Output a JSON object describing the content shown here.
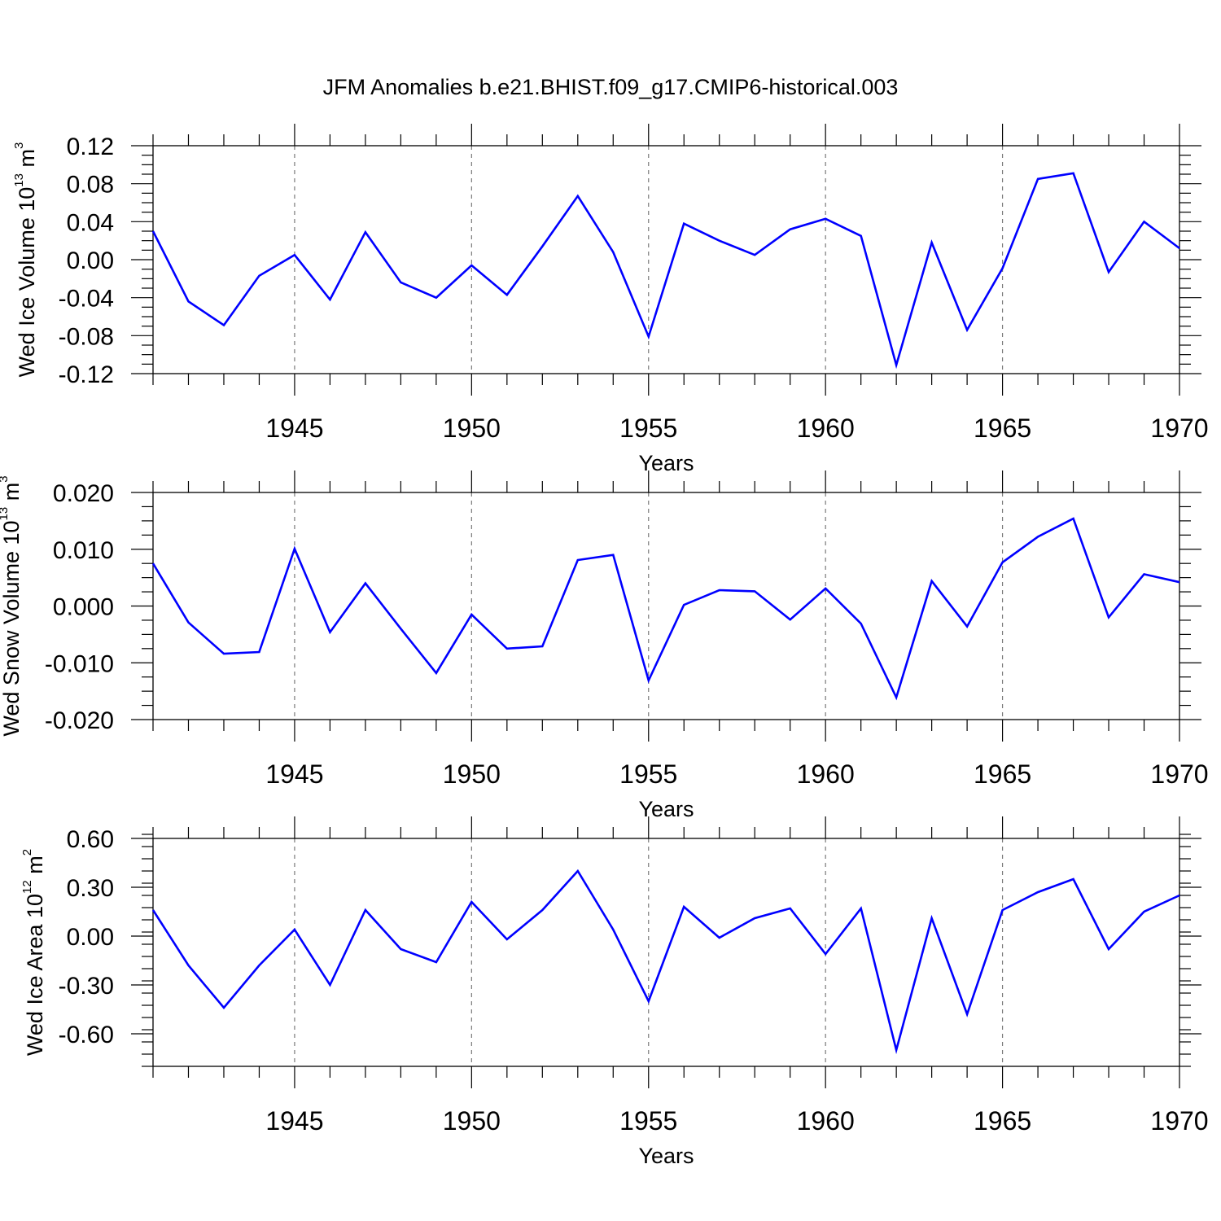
{
  "title": "JFM Anomalies b.e21.BHIST.f09_g17.CMIP6-historical.003",
  "colors": {
    "line": "#0000ff",
    "axis": "#000000",
    "grid": "#7a7a7a"
  },
  "chart_data": [
    {
      "type": "line",
      "ylabel_main": "Wed Ice Volume 10",
      "ylabel_exp": "13",
      "ylabel_unit": " m",
      "ylabel_unit_exp": "3",
      "xlabel": "Years",
      "xlim": [
        1941,
        1970
      ],
      "ylim": [
        -0.12,
        0.12
      ],
      "yticks": [
        -0.12,
        -0.08,
        -0.04,
        0.0,
        0.04,
        0.08,
        0.12
      ],
      "ytick_labels": [
        "-0.12",
        "-0.08",
        "-0.04",
        "0.00",
        "0.04",
        "0.08",
        "0.12"
      ],
      "xticks": [
        1945,
        1950,
        1955,
        1960,
        1965,
        1970
      ],
      "xtick_labels": [
        "1945",
        "1950",
        "1955",
        "1960",
        "1965",
        "1970"
      ],
      "x": [
        1941,
        1942,
        1943,
        1944,
        1945,
        1946,
        1947,
        1948,
        1949,
        1950,
        1951,
        1952,
        1953,
        1954,
        1955,
        1956,
        1957,
        1958,
        1959,
        1960,
        1961,
        1962,
        1963,
        1964,
        1965,
        1966,
        1967,
        1968,
        1969,
        1970
      ],
      "values": [
        0.03,
        -0.044,
        -0.069,
        -0.017,
        0.005,
        -0.042,
        0.029,
        -0.024,
        -0.04,
        -0.006,
        -0.037,
        0.014,
        0.067,
        0.008,
        -0.081,
        0.038,
        0.02,
        0.005,
        0.032,
        0.043,
        0.025,
        -0.111,
        0.018,
        -0.074,
        -0.009,
        0.085,
        0.091,
        -0.013,
        0.04,
        0.012
      ]
    },
    {
      "type": "line",
      "ylabel_main": "Wed Snow Volume 10",
      "ylabel_exp": "13",
      "ylabel_unit": " m",
      "ylabel_unit_exp": "3",
      "xlabel": "Years",
      "xlim": [
        1941,
        1970
      ],
      "ylim": [
        -0.02,
        0.02
      ],
      "yticks": [
        -0.02,
        -0.01,
        0.0,
        0.01,
        0.02
      ],
      "ytick_labels": [
        "-0.020",
        "-0.010",
        "0.000",
        "0.010",
        "0.020"
      ],
      "xticks": [
        1945,
        1950,
        1955,
        1960,
        1965,
        1970
      ],
      "xtick_labels": [
        "1945",
        "1950",
        "1955",
        "1960",
        "1965",
        "1970"
      ],
      "x": [
        1941,
        1942,
        1943,
        1944,
        1945,
        1946,
        1947,
        1948,
        1949,
        1950,
        1951,
        1952,
        1953,
        1954,
        1955,
        1956,
        1957,
        1958,
        1959,
        1960,
        1961,
        1962,
        1963,
        1964,
        1965,
        1966,
        1967,
        1968,
        1969,
        1970
      ],
      "values": [
        0.0075,
        -0.0029,
        -0.0084,
        -0.0081,
        0.0101,
        -0.0046,
        0.004,
        -0.004,
        -0.0118,
        -0.0015,
        -0.0075,
        -0.0071,
        0.0081,
        0.009,
        -0.0131,
        0.0002,
        0.0028,
        0.0026,
        -0.0024,
        0.0031,
        -0.0031,
        -0.0161,
        0.0044,
        -0.0036,
        0.0077,
        0.0122,
        0.0154,
        -0.002,
        0.0056,
        0.0042
      ]
    },
    {
      "type": "line",
      "ylabel_main": "Wed Ice Area 10",
      "ylabel_exp": "12",
      "ylabel_unit": " m",
      "ylabel_unit_exp": "2",
      "xlabel": "Years",
      "xlim": [
        1941,
        1970
      ],
      "ylim": [
        -0.8,
        0.6
      ],
      "yticks": [
        -0.6,
        -0.3,
        0.0,
        0.3,
        0.6
      ],
      "ytick_labels": [
        "-0.60",
        "-0.30",
        "0.00",
        "0.30",
        "0.60"
      ],
      "xticks": [
        1945,
        1950,
        1955,
        1960,
        1965,
        1970
      ],
      "xtick_labels": [
        "1945",
        "1950",
        "1955",
        "1960",
        "1965",
        "1970"
      ],
      "x": [
        1941,
        1942,
        1943,
        1944,
        1945,
        1946,
        1947,
        1948,
        1949,
        1950,
        1951,
        1952,
        1953,
        1954,
        1955,
        1956,
        1957,
        1958,
        1959,
        1960,
        1961,
        1962,
        1963,
        1964,
        1965,
        1966,
        1967,
        1968,
        1969,
        1970
      ],
      "values": [
        0.16,
        -0.18,
        -0.44,
        -0.18,
        0.04,
        -0.3,
        0.16,
        -0.08,
        -0.16,
        0.21,
        -0.02,
        0.16,
        0.4,
        0.04,
        -0.4,
        0.18,
        -0.01,
        0.11,
        0.17,
        -0.11,
        0.17,
        -0.7,
        0.11,
        -0.48,
        0.16,
        0.27,
        0.35,
        -0.08,
        0.15,
        0.25
      ]
    }
  ]
}
